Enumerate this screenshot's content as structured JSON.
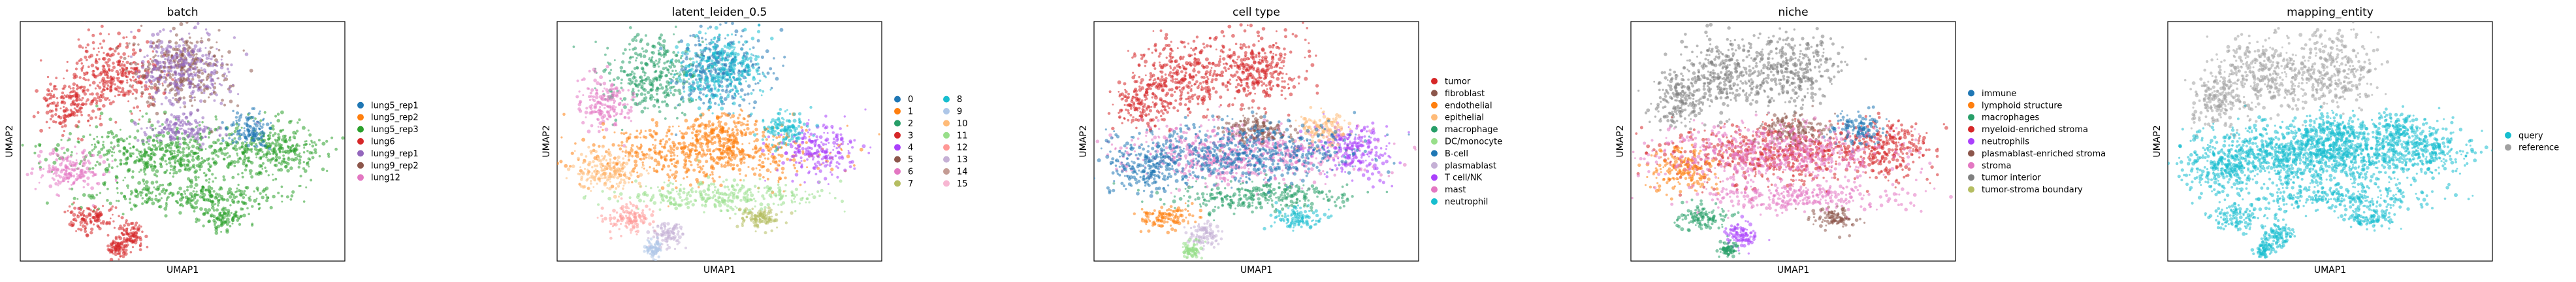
{
  "chart_data": [
    {
      "type": "scatter",
      "title": "batch",
      "xlabel": "UMAP1",
      "ylabel": "UMAP2",
      "grid": false,
      "legend_placement": "right",
      "series": [
        {
          "name": "lung5_rep1",
          "color": "#1f77b4"
        },
        {
          "name": "lung5_rep2",
          "color": "#ff7f0e"
        },
        {
          "name": "lung5_rep3",
          "color": "#2ca02c"
        },
        {
          "name": "lung6",
          "color": "#d62728"
        },
        {
          "name": "lung9_rep1",
          "color": "#9467bd"
        },
        {
          "name": "lung9_rep2",
          "color": "#8c564b"
        },
        {
          "name": "lung12",
          "color": "#e377c2"
        }
      ]
    },
    {
      "type": "scatter",
      "title": "latent_leiden_0.5",
      "xlabel": "UMAP1",
      "ylabel": "UMAP2",
      "grid": false,
      "legend_placement": "right",
      "series": [
        {
          "name": "0",
          "color": "#1f77b4"
        },
        {
          "name": "1",
          "color": "#ff7f0e"
        },
        {
          "name": "2",
          "color": "#279e68"
        },
        {
          "name": "3",
          "color": "#d62728"
        },
        {
          "name": "4",
          "color": "#aa40fc"
        },
        {
          "name": "5",
          "color": "#8c564b"
        },
        {
          "name": "6",
          "color": "#e377c2"
        },
        {
          "name": "7",
          "color": "#b5bd61"
        },
        {
          "name": "8",
          "color": "#17becf"
        },
        {
          "name": "9",
          "color": "#aec7e8"
        },
        {
          "name": "10",
          "color": "#ffbb78"
        },
        {
          "name": "11",
          "color": "#98df8a"
        },
        {
          "name": "12",
          "color": "#ff9896"
        },
        {
          "name": "13",
          "color": "#c5b0d5"
        },
        {
          "name": "14",
          "color": "#c49c94"
        },
        {
          "name": "15",
          "color": "#f7b6d2"
        }
      ]
    },
    {
      "type": "scatter",
      "title": "cell type",
      "xlabel": "UMAP1",
      "ylabel": "UMAP2",
      "grid": false,
      "legend_placement": "right",
      "series": [
        {
          "name": "tumor",
          "color": "#d62728"
        },
        {
          "name": "fibroblast",
          "color": "#8c564b"
        },
        {
          "name": "endothelial",
          "color": "#ff7f0e"
        },
        {
          "name": "epithelial",
          "color": "#ffbb78"
        },
        {
          "name": "macrophage",
          "color": "#279e68"
        },
        {
          "name": "DC/monocyte",
          "color": "#98df8a"
        },
        {
          "name": "B-cell",
          "color": "#1f77b4"
        },
        {
          "name": "plasmablast",
          "color": "#c5b0d5"
        },
        {
          "name": "T cell/NK",
          "color": "#aa40fc"
        },
        {
          "name": "mast",
          "color": "#e377c2"
        },
        {
          "name": "neutrophil",
          "color": "#17becf"
        }
      ]
    },
    {
      "type": "scatter",
      "title": "niche",
      "xlabel": "UMAP1",
      "ylabel": "UMAP2",
      "grid": false,
      "legend_placement": "right",
      "series": [
        {
          "name": "immune",
          "color": "#1f77b4"
        },
        {
          "name": "lymphoid structure",
          "color": "#ff7f0e"
        },
        {
          "name": "macrophages",
          "color": "#279e68"
        },
        {
          "name": "myeloid-enriched stroma",
          "color": "#d62728"
        },
        {
          "name": "neutrophils",
          "color": "#aa40fc"
        },
        {
          "name": "plasmablast-enriched stroma",
          "color": "#8c564b"
        },
        {
          "name": "stroma",
          "color": "#e377c2"
        },
        {
          "name": "tumor interior",
          "color": "#7f7f7f"
        },
        {
          "name": "tumor-stroma boundary",
          "color": "#b5bd61"
        }
      ]
    },
    {
      "type": "scatter",
      "title": "mapping_entity",
      "xlabel": "UMAP1",
      "ylabel": "UMAP2",
      "grid": false,
      "legend_placement": "right",
      "series": [
        {
          "name": "query",
          "color": "#17becf"
        },
        {
          "name": "reference",
          "color": "#a0a0a0"
        }
      ]
    }
  ]
}
